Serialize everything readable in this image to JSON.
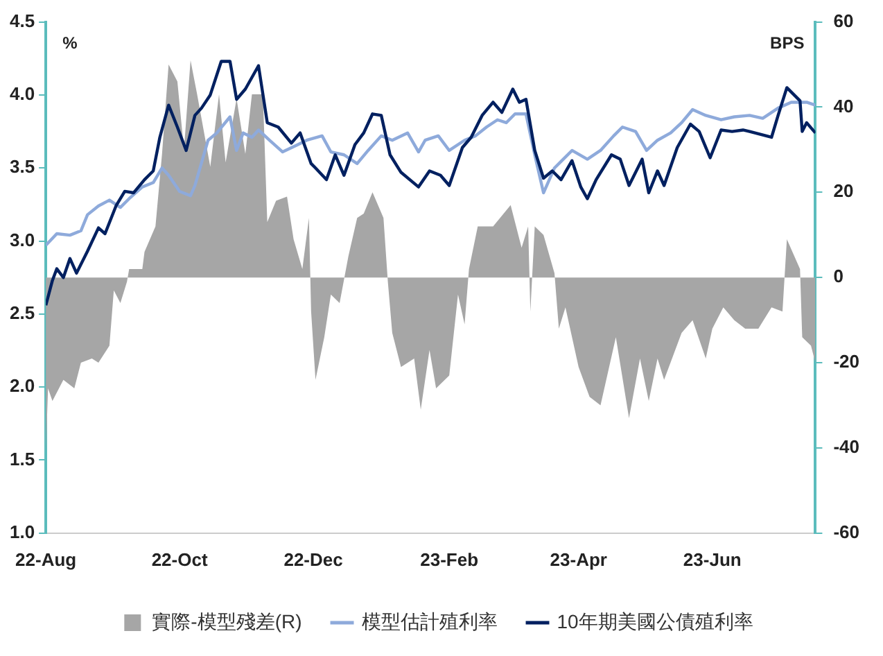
{
  "chart_data": {
    "type": "line",
    "ylabel": "%",
    "y2label": "BPS",
    "legend": "bottom",
    "marker": "none",
    "xlim": [
      "2022-08-01",
      "2023-07-18"
    ],
    "xticks": [
      {
        "value": "2022-08-01",
        "label": "22-Aug"
      },
      {
        "value": "2022-10-01",
        "label": "22-Oct"
      },
      {
        "value": "2022-12-01",
        "label": "22-Dec"
      },
      {
        "value": "2023-02-01",
        "label": "23-Feb"
      },
      {
        "value": "2023-04-01",
        "label": "23-Apr"
      },
      {
        "value": "2023-06-01",
        "label": "23-Jun"
      }
    ],
    "ylim": [
      1,
      4.5
    ],
    "yticks": [
      {
        "value": 1,
        "label": "1.0"
      },
      1.5,
      {
        "value": 2,
        "label": "2.0"
      },
      2.5,
      {
        "value": 3,
        "label": "3.0"
      },
      3.5,
      {
        "value": 4,
        "label": "4.0"
      },
      4.5
    ],
    "y2lim": [
      -60,
      60
    ],
    "y2ticks": [
      -60,
      -40,
      -20,
      0,
      20,
      40,
      60
    ],
    "series": [
      {
        "type": "area",
        "axis": "y2",
        "name": "實際-模型殘差(R)",
        "color": "#a6a6a6",
        "x": [
          "2022-08-01",
          "2022-08-02",
          "2022-08-04",
          "2022-08-09",
          "2022-08-14",
          "2022-08-17",
          "2022-08-22",
          "2022-08-25",
          "2022-08-30",
          "2022-09-01",
          "2022-09-04",
          "2022-09-07",
          "2022-09-08",
          "2022-09-14",
          "2022-09-15",
          "2022-09-20",
          "2022-09-23",
          "2022-09-26",
          "2022-09-30",
          "2022-10-03",
          "2022-10-06",
          "2022-10-09",
          "2022-10-15",
          "2022-10-19",
          "2022-10-22",
          "2022-10-27",
          "2022-10-31",
          "2022-11-03",
          "2022-11-08",
          "2022-11-10",
          "2022-11-14",
          "2022-11-19",
          "2022-11-22",
          "2022-11-26",
          "2022-11-29",
          "2022-11-30",
          "2022-12-02",
          "2022-12-06",
          "2022-12-09",
          "2022-12-13",
          "2022-12-17",
          "2022-12-21",
          "2022-12-24",
          "2022-12-28",
          "2023-01-02",
          "2023-01-04",
          "2023-01-06",
          "2023-01-10",
          "2023-01-16",
          "2023-01-19",
          "2023-01-23",
          "2023-01-26",
          "2023-02-01",
          "2023-02-05",
          "2023-02-08",
          "2023-02-10",
          "2023-02-14",
          "2023-02-21",
          "2023-03-01",
          "2023-03-06",
          "2023-03-09",
          "2023-03-10",
          "2023-03-12",
          "2023-03-16",
          "2023-03-21",
          "2023-03-23",
          "2023-03-26",
          "2023-04-01",
          "2023-04-06",
          "2023-04-11",
          "2023-04-18",
          "2023-04-24",
          "2023-04-29",
          "2023-05-03",
          "2023-05-07",
          "2023-05-10",
          "2023-05-18",
          "2023-05-23",
          "2023-05-29",
          "2023-06-01",
          "2023-06-06",
          "2023-06-11",
          "2023-06-16",
          "2023-06-22",
          "2023-06-28",
          "2023-07-03",
          "2023-07-05",
          "2023-07-11",
          "2023-07-12",
          "2023-07-16",
          "2023-07-18"
        ],
        "values": [
          -41,
          -26,
          -29,
          -24,
          -26,
          -20,
          -19,
          -20,
          -16,
          -3,
          -6,
          -1,
          2,
          2,
          6,
          12,
          29,
          50,
          46,
          30,
          51,
          43,
          26,
          43,
          27,
          42,
          29,
          43,
          43,
          13,
          18,
          19,
          9,
          2,
          14,
          -8,
          -24,
          -14,
          -4,
          -6,
          5,
          14,
          15,
          20,
          14,
          -1,
          -13,
          -21,
          -19,
          -31,
          -17,
          -26,
          -23,
          -4,
          -11,
          2,
          12,
          12,
          17,
          7,
          12,
          -8,
          12,
          10,
          1,
          -12,
          -7,
          -21,
          -28,
          -30,
          -14,
          -33,
          -19,
          -29,
          -19,
          -24,
          -13,
          -10,
          -19,
          -12,
          -7,
          -10,
          -12,
          -12,
          -7,
          -8,
          9,
          2,
          -14,
          -16,
          -20
        ]
      },
      {
        "type": "line",
        "name": "模型估計殖利率",
        "color": "#8eaadb",
        "x": [
          "2022-08-01",
          "2022-08-06",
          "2022-08-12",
          "2022-08-17",
          "2022-08-20",
          "2022-08-25",
          "2022-08-30",
          "2022-09-04",
          "2022-09-08",
          "2022-09-14",
          "2022-09-19",
          "2022-09-23",
          "2022-09-26",
          "2022-10-01",
          "2022-10-06",
          "2022-10-08",
          "2022-10-14",
          "2022-10-18",
          "2022-10-24",
          "2022-10-27",
          "2022-10-30",
          "2022-11-03",
          "2022-11-06",
          "2022-11-11",
          "2022-11-17",
          "2022-11-24",
          "2022-11-28",
          "2022-12-05",
          "2022-12-09",
          "2022-12-15",
          "2022-12-21",
          "2022-12-26",
          "2023-01-01",
          "2023-01-06",
          "2023-01-13",
          "2023-01-18",
          "2023-01-21",
          "2023-01-27",
          "2023-02-01",
          "2023-02-08",
          "2023-02-13",
          "2023-02-18",
          "2023-02-23",
          "2023-02-27",
          "2023-03-03",
          "2023-03-08",
          "2023-03-12",
          "2023-03-16",
          "2023-03-21",
          "2023-03-25",
          "2023-03-29",
          "2023-04-05",
          "2023-04-11",
          "2023-04-17",
          "2023-04-21",
          "2023-04-27",
          "2023-05-02",
          "2023-05-07",
          "2023-05-13",
          "2023-05-18",
          "2023-05-23",
          "2023-05-29",
          "2023-06-05",
          "2023-06-11",
          "2023-06-18",
          "2023-06-24",
          "2023-07-01",
          "2023-07-07",
          "2023-07-14",
          "2023-07-18"
        ],
        "values": [
          2.97,
          3.05,
          3.04,
          3.07,
          3.18,
          3.24,
          3.28,
          3.23,
          3.29,
          3.37,
          3.4,
          3.5,
          3.45,
          3.34,
          3.31,
          3.38,
          3.69,
          3.74,
          3.85,
          3.62,
          3.74,
          3.71,
          3.76,
          3.69,
          3.61,
          3.66,
          3.69,
          3.72,
          3.61,
          3.59,
          3.53,
          3.62,
          3.72,
          3.69,
          3.74,
          3.61,
          3.69,
          3.72,
          3.62,
          3.69,
          3.72,
          3.78,
          3.83,
          3.81,
          3.87,
          3.87,
          3.59,
          3.33,
          3.5,
          3.56,
          3.62,
          3.56,
          3.62,
          3.72,
          3.78,
          3.75,
          3.62,
          3.69,
          3.74,
          3.81,
          3.9,
          3.86,
          3.83,
          3.85,
          3.86,
          3.84,
          3.91,
          3.95,
          3.95,
          3.93
        ]
      },
      {
        "type": "line",
        "name": "10年期美國公債殖利率",
        "color": "#002060",
        "x": [
          "2022-08-01",
          "2022-08-04",
          "2022-08-06",
          "2022-08-09",
          "2022-08-12",
          "2022-08-15",
          "2022-08-20",
          "2022-08-25",
          "2022-08-28",
          "2022-09-02",
          "2022-09-06",
          "2022-09-10",
          "2022-09-15",
          "2022-09-19",
          "2022-09-22",
          "2022-09-26",
          "2022-09-30",
          "2022-10-04",
          "2022-10-08",
          "2022-10-11",
          "2022-10-15",
          "2022-10-20",
          "2022-10-24",
          "2022-10-27",
          "2022-10-31",
          "2022-11-06",
          "2022-11-10",
          "2022-11-15",
          "2022-11-21",
          "2022-11-25",
          "2022-11-30",
          "2022-12-02",
          "2022-12-07",
          "2022-12-11",
          "2022-12-15",
          "2022-12-20",
          "2022-12-24",
          "2022-12-28",
          "2023-01-01",
          "2023-01-05",
          "2023-01-10",
          "2023-01-18",
          "2023-01-23",
          "2023-01-28",
          "2023-02-01",
          "2023-02-07",
          "2023-02-11",
          "2023-02-16",
          "2023-02-21",
          "2023-02-25",
          "2023-03-02",
          "2023-03-05",
          "2023-03-08",
          "2023-03-12",
          "2023-03-16",
          "2023-03-20",
          "2023-03-24",
          "2023-03-29",
          "2023-04-02",
          "2023-04-05",
          "2023-04-09",
          "2023-04-16",
          "2023-04-20",
          "2023-04-24",
          "2023-04-30",
          "2023-05-03",
          "2023-05-07",
          "2023-05-10",
          "2023-05-16",
          "2023-05-22",
          "2023-05-26",
          "2023-05-31",
          "2023-06-05",
          "2023-06-10",
          "2023-06-15",
          "2023-06-18",
          "2023-06-28",
          "2023-07-01",
          "2023-07-05",
          "2023-07-11",
          "2023-07-12",
          "2023-07-14",
          "2023-07-18"
        ],
        "values": [
          2.56,
          2.73,
          2.81,
          2.75,
          2.88,
          2.78,
          2.93,
          3.09,
          3.05,
          3.24,
          3.34,
          3.33,
          3.42,
          3.48,
          3.71,
          3.93,
          3.78,
          3.62,
          3.86,
          3.91,
          4.0,
          4.23,
          4.23,
          3.97,
          4.04,
          4.2,
          3.81,
          3.78,
          3.67,
          3.74,
          3.53,
          3.5,
          3.42,
          3.59,
          3.45,
          3.66,
          3.74,
          3.87,
          3.86,
          3.59,
          3.47,
          3.37,
          3.48,
          3.45,
          3.38,
          3.64,
          3.71,
          3.86,
          3.95,
          3.88,
          4.04,
          3.95,
          3.97,
          3.62,
          3.43,
          3.48,
          3.42,
          3.55,
          3.37,
          3.29,
          3.42,
          3.59,
          3.56,
          3.38,
          3.56,
          3.33,
          3.48,
          3.38,
          3.64,
          3.8,
          3.75,
          3.57,
          3.76,
          3.75,
          3.76,
          3.75,
          3.71,
          3.86,
          4.05,
          3.96,
          3.75,
          3.81,
          3.74
        ]
      }
    ]
  }
}
